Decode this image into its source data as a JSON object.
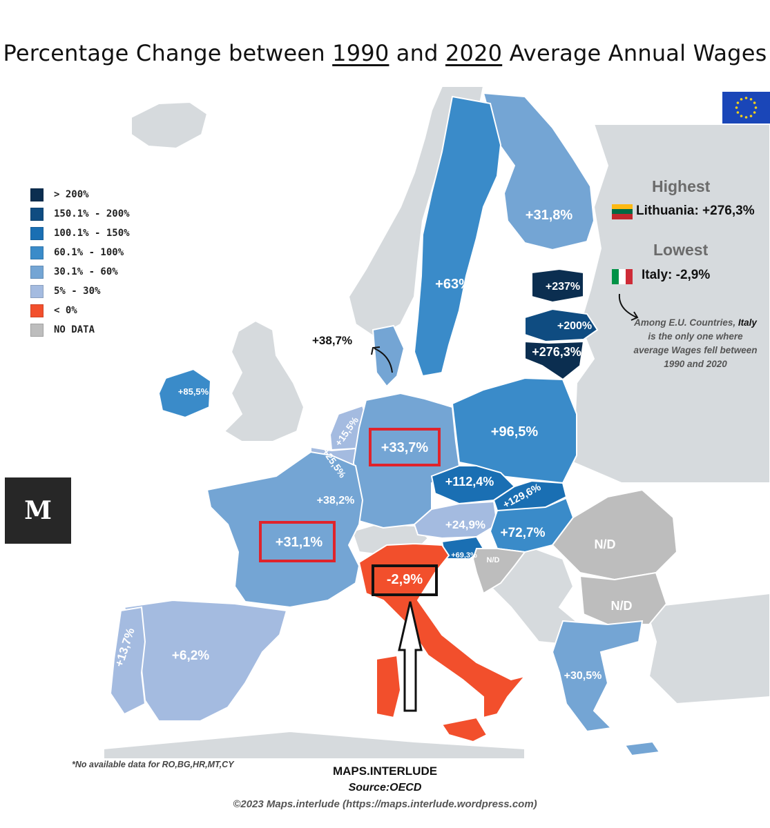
{
  "title": {
    "before": "Percentage Change between ",
    "year1": "1990",
    "middle": " and ",
    "year2": "2020",
    "after": " Average Annual Wages"
  },
  "legend": {
    "items": [
      {
        "label": "> 200%",
        "color": "#0b2e50"
      },
      {
        "label": "150.1% - 200%",
        "color": "#0f4c81"
      },
      {
        "label": "100.1% - 150%",
        "color": "#1a6fb3"
      },
      {
        "label": "60.1% - 100%",
        "color": "#3a8bc9"
      },
      {
        "label": "30.1% - 60%",
        "color": "#74a5d4"
      },
      {
        "label": "5% - 30%",
        "color": "#a4bbe0"
      },
      {
        "label": "< 0%",
        "color": "#f24f2c"
      },
      {
        "label": "NO DATA",
        "color": "#bdbdbd"
      }
    ]
  },
  "highest": {
    "heading": "Highest",
    "value": "Lithuania: +276,3%"
  },
  "lowest": {
    "heading": "Lowest",
    "value": "Italy: -2,9%"
  },
  "note": {
    "part1": "Among E.U. Countries,",
    "bold": "Italy",
    "part2": "is the only one where average Wages fell between 1990 and 2020"
  },
  "map_labels": {
    "finland": "+31,8%",
    "sweden": "+63%",
    "estonia": "+237%",
    "latvia": "+200%",
    "lithuania": "+276,3%",
    "denmark": "+38,7%",
    "ireland": "+85,5%",
    "netherlands": "+15,5%",
    "belgium": "+25,5%",
    "germany": "+33,7%",
    "poland": "+96,5%",
    "czechia": "+112,4%",
    "slovakia": "+129,6%",
    "luxembourg": "+38,2%",
    "france": "+31,1%",
    "austria": "+24,9%",
    "hungary": "+72,7%",
    "slovenia": "+69,3%",
    "croatia": "N/D",
    "romania": "N/D",
    "bulgaria": "N/D",
    "italy": "-2,9%",
    "portugal": "+13,7%",
    "spain": "+6,2%",
    "greece": "+30,5%"
  },
  "logo": {
    "text": "M"
  },
  "footnote": "*No available data for RO,BG,HR,MT,CY",
  "credits": {
    "brand": "MAPS.INTERLUDE",
    "source": "Source:OECD",
    "copyright": "©2023 Maps.interlude (https://maps.interlude.wordpress.com)"
  },
  "colors": {
    "land_grey": "#d6dadd",
    "highlight_box": "#e0232b",
    "italy": "#f24f2c"
  }
}
